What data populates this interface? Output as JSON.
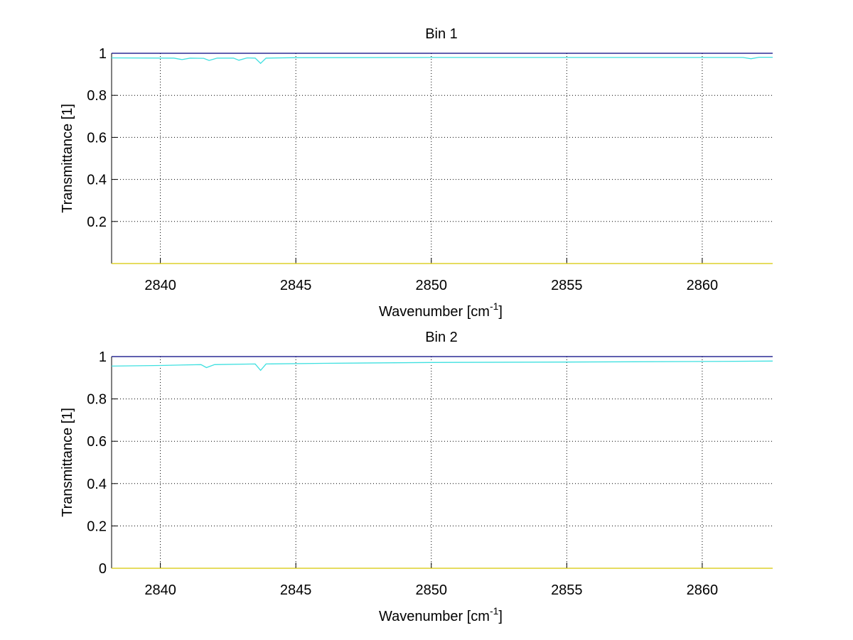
{
  "chart_data": [
    {
      "type": "line",
      "title": "Bin 1",
      "xlabel": "Wavenumber [cm",
      "xlabel_sup": "-1",
      "xlabel_end": "]",
      "ylabel": "Transmittance [1]",
      "xlim": [
        2838.2,
        2862.6
      ],
      "ylim": [
        0,
        1
      ],
      "xticks": [
        2840,
        2845,
        2850,
        2855,
        2860
      ],
      "xtick_labels": [
        "2840",
        "2845",
        "2850",
        "2855",
        "2860"
      ],
      "yticks": [
        0.2,
        0.4,
        0.6,
        0.8,
        1
      ],
      "ytick_labels": [
        "0.2",
        "0.4",
        "0.6",
        "0.8",
        "1"
      ],
      "grid": true,
      "series": [
        {
          "name": "blue",
          "color": "#00007f",
          "x": [
            2838.2,
            2862.6
          ],
          "y": [
            1.0,
            1.0
          ]
        },
        {
          "name": "cyan",
          "color": "#3fe0e0",
          "x": [
            2838.2,
            2840.5,
            2840.8,
            2841.1,
            2841.6,
            2841.8,
            2842.1,
            2842.7,
            2842.9,
            2843.2,
            2843.5,
            2843.7,
            2843.9,
            2845,
            2850,
            2855,
            2861.5,
            2861.8,
            2862.1,
            2862.6
          ],
          "y": [
            0.978,
            0.977,
            0.97,
            0.977,
            0.976,
            0.966,
            0.977,
            0.977,
            0.967,
            0.978,
            0.977,
            0.952,
            0.977,
            0.979,
            0.98,
            0.98,
            0.98,
            0.974,
            0.981,
            0.981
          ]
        },
        {
          "name": "yellow",
          "color": "#d8c800",
          "x": [
            2838.2,
            2862.6
          ],
          "y": [
            0.0,
            0.0
          ]
        }
      ]
    },
    {
      "type": "line",
      "title": "Bin 2",
      "xlabel": "Wavenumber [cm",
      "xlabel_sup": "-1",
      "xlabel_end": "]",
      "ylabel": "Transmittance [1]",
      "xlim": [
        2838.2,
        2862.6
      ],
      "ylim": [
        0,
        1
      ],
      "xticks": [
        2840,
        2845,
        2850,
        2855,
        2860
      ],
      "xtick_labels": [
        "2840",
        "2845",
        "2850",
        "2855",
        "2860"
      ],
      "yticks": [
        0,
        0.2,
        0.4,
        0.6,
        0.8,
        1
      ],
      "ytick_labels": [
        "0",
        "0.2",
        "0.4",
        "0.6",
        "0.8",
        "1"
      ],
      "grid": true,
      "series": [
        {
          "name": "blue",
          "color": "#00007f",
          "x": [
            2838.2,
            2862.6
          ],
          "y": [
            1.0,
            1.0
          ]
        },
        {
          "name": "cyan",
          "color": "#3fe0e0",
          "x": [
            2838.2,
            2840,
            2841.5,
            2841.7,
            2842,
            2843.5,
            2843.7,
            2843.9,
            2846,
            2850,
            2855,
            2860,
            2862.6
          ],
          "y": [
            0.955,
            0.958,
            0.962,
            0.948,
            0.962,
            0.965,
            0.935,
            0.965,
            0.968,
            0.972,
            0.974,
            0.977,
            0.979
          ]
        },
        {
          "name": "yellow",
          "color": "#d8c800",
          "x": [
            2838.2,
            2862.6
          ],
          "y": [
            0.0,
            0.0
          ]
        }
      ]
    }
  ]
}
